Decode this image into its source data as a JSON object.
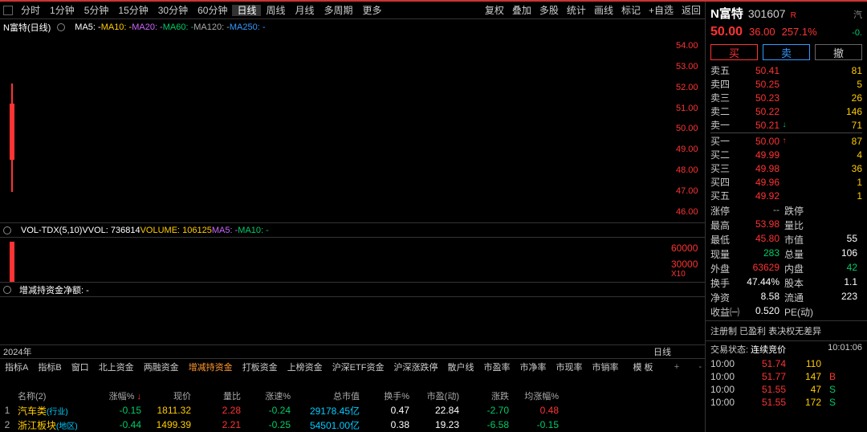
{
  "colors": {
    "bg": "#000000",
    "red": "#ff3333",
    "green": "#00cc66",
    "yellow": "#ffcc00",
    "cyan": "#00ccff",
    "white": "#ffffff",
    "gray": "#aaaaaa",
    "purple": "#cc66ff",
    "orange": "#ff9933",
    "blue": "#3399ff",
    "border": "#333333"
  },
  "timeframes": {
    "items": [
      "分时",
      "1分钟",
      "5分钟",
      "15分钟",
      "30分钟",
      "60分钟",
      "日线",
      "周线",
      "月线",
      "多周期",
      "更多"
    ],
    "active_index": 6,
    "right_items": [
      "复权",
      "叠加",
      "多股",
      "统计",
      "画线",
      "标记",
      "+自选",
      "返回"
    ]
  },
  "chart": {
    "title": "N富特(日线)",
    "ma_labels": [
      {
        "text": "MA5: -",
        "color": "c-white"
      },
      {
        "text": "MA10: -",
        "color": "c-yellow"
      },
      {
        "text": "MA20: -",
        "color": "c-purple"
      },
      {
        "text": "MA60: -",
        "color": "c-green"
      },
      {
        "text": "MA120: -",
        "color": "c-gray"
      },
      {
        "text": "MA250: -",
        "color": "c-blue"
      }
    ],
    "y_ticks": [
      "54.00",
      "53.00",
      "52.00",
      "51.00",
      "50.00",
      "49.00",
      "48.00",
      "47.00",
      "46.00"
    ],
    "y_color": "c-red",
    "x_left": "2024年",
    "x_right": "日线"
  },
  "volume": {
    "labels": [
      {
        "text": "VOL-TDX(5,10)",
        "color": "c-white"
      },
      {
        "text": "VVOL: 736814",
        "color": "c-white"
      },
      {
        "text": "VOLUME: 106125",
        "color": "c-yellow"
      },
      {
        "text": "MA5: -",
        "color": "c-purple"
      },
      {
        "text": "MA10: -",
        "color": "c-green"
      }
    ],
    "y_ticks": [
      "60000",
      "30000"
    ],
    "mult": "X10"
  },
  "fund": {
    "labels": [
      {
        "text": "增减持资金",
        "color": "c-white"
      },
      {
        "text": "净额: -",
        "color": "c-white"
      }
    ]
  },
  "indicator_tabs": {
    "left": [
      "指标A",
      "指标B",
      "窗口",
      "北上资金",
      "两融资金"
    ],
    "active": "增减持资金",
    "right": [
      "打板资金",
      "上榜资金",
      "沪深ETF资金",
      "沪深涨跌停",
      "散户线",
      "市盈率",
      "市净率",
      "市现率",
      "市销率"
    ],
    "trailer": "模 板",
    "plus": "+",
    "minus": "-"
  },
  "table": {
    "headers": [
      "",
      "名称(2)",
      "涨幅%",
      "现价",
      "量比",
      "涨速%",
      "总市值",
      "换手%",
      "市盈(动)",
      "涨跌",
      "均涨幅%"
    ],
    "sort_indicator": "↓",
    "rows": [
      {
        "idx": "1",
        "name": "汽车类",
        "note": "(行业)",
        "chg": "-0.15",
        "chg_c": "c-green",
        "price": "1811.32",
        "price_c": "c-yellow",
        "lb": "2.28",
        "lb_c": "c-red",
        "spd": "-0.24",
        "spd_c": "c-green",
        "mcap": "29178.45亿",
        "mcap_c": "c-cyan",
        "turn": "0.47",
        "pe": "22.84",
        "px": "-2.70",
        "px_c": "c-green",
        "avg": "0.48",
        "avg_c": "c-red"
      },
      {
        "idx": "2",
        "name": "浙江板块",
        "note": "(地区)",
        "chg": "-0.44",
        "chg_c": "c-green",
        "price": "1499.39",
        "price_c": "c-yellow",
        "lb": "2.21",
        "lb_c": "c-red",
        "spd": "-0.25",
        "spd_c": "c-green",
        "mcap": "54501.00亿",
        "mcap_c": "c-cyan",
        "turn": "0.38",
        "pe": "19.23",
        "px": "-6.58",
        "px_c": "c-green",
        "avg": "-0.15",
        "avg_c": "c-green"
      }
    ]
  },
  "right": {
    "name": "N富特",
    "code": "301607",
    "badge": "R",
    "extra": "汽",
    "price": "50.00",
    "change_abs": "36.00",
    "change_pct": "257.1%",
    "extra_pct": "-0.",
    "buttons": {
      "buy": "买",
      "sell": "卖",
      "cancel": "撤"
    },
    "asks": [
      {
        "label": "卖五",
        "price": "50.41",
        "vol": "81",
        "arrow": ""
      },
      {
        "label": "卖四",
        "price": "50.25",
        "vol": "5",
        "arrow": ""
      },
      {
        "label": "卖三",
        "price": "50.23",
        "vol": "26",
        "arrow": ""
      },
      {
        "label": "卖二",
        "price": "50.22",
        "vol": "146",
        "arrow": ""
      },
      {
        "label": "卖一",
        "price": "50.21",
        "vol": "71",
        "arrow": "↓"
      }
    ],
    "bids": [
      {
        "label": "买一",
        "price": "50.00",
        "vol": "87",
        "arrow": "↑"
      },
      {
        "label": "买二",
        "price": "49.99",
        "vol": "4",
        "arrow": ""
      },
      {
        "label": "买三",
        "price": "49.98",
        "vol": "36",
        "arrow": ""
      },
      {
        "label": "买四",
        "price": "49.96",
        "vol": "1",
        "arrow": ""
      },
      {
        "label": "买五",
        "price": "49.92",
        "vol": "1",
        "arrow": ""
      }
    ],
    "stats": [
      {
        "l1": "涨停",
        "v1": "--",
        "v1c": "c-gray",
        "l2": "跌停",
        "v2": "",
        "v2c": "c-gray"
      },
      {
        "l1": "最高",
        "v1": "53.98",
        "v1c": "c-red",
        "l2": "量比",
        "v2": "",
        "v2c": "c-white"
      },
      {
        "l1": "最低",
        "v1": "45.80",
        "v1c": "c-red",
        "l2": "市值",
        "v2": "55",
        "v2c": "c-white"
      },
      {
        "l1": "现量",
        "v1": "283",
        "v1c": "c-green",
        "l2": "总量",
        "v2": "106",
        "v2c": "c-white"
      },
      {
        "l1": "外盘",
        "v1": "63629",
        "v1c": "c-red",
        "l2": "内盘",
        "v2": "42",
        "v2c": "c-green"
      },
      {
        "l1": "换手",
        "v1": "47.44%",
        "v1c": "c-white",
        "l2": "股本",
        "v2": "1.1",
        "v2c": "c-white"
      },
      {
        "l1": "净资",
        "v1": "8.58",
        "v1c": "c-white",
        "l2": "流通",
        "v2": "223",
        "v2c": "c-white"
      },
      {
        "l1": "收益㈠",
        "v1": "0.520",
        "v1c": "c-white",
        "l2": "PE(动)",
        "v2": "",
        "v2c": "c-white"
      }
    ],
    "note": "注册制 已盈利 表决权无差异",
    "status_label": "交易状态:",
    "status_val": "连续竞价",
    "status_time": "10:01:06",
    "ticks": [
      {
        "t": "10:00",
        "p": "51.74",
        "pc": "c-red",
        "v": "110",
        "vc": "c-yellow",
        "d": "",
        "dc": ""
      },
      {
        "t": "10:00",
        "p": "51.77",
        "pc": "c-red",
        "v": "147",
        "vc": "c-yellow",
        "d": "B",
        "dc": "c-red"
      },
      {
        "t": "10:00",
        "p": "51.55",
        "pc": "c-red",
        "v": "47",
        "vc": "c-yellow",
        "d": "S",
        "dc": "c-green"
      },
      {
        "t": "10:00",
        "p": "51.55",
        "pc": "c-red",
        "v": "172",
        "vc": "c-yellow",
        "d": "S",
        "dc": "c-green"
      }
    ]
  }
}
